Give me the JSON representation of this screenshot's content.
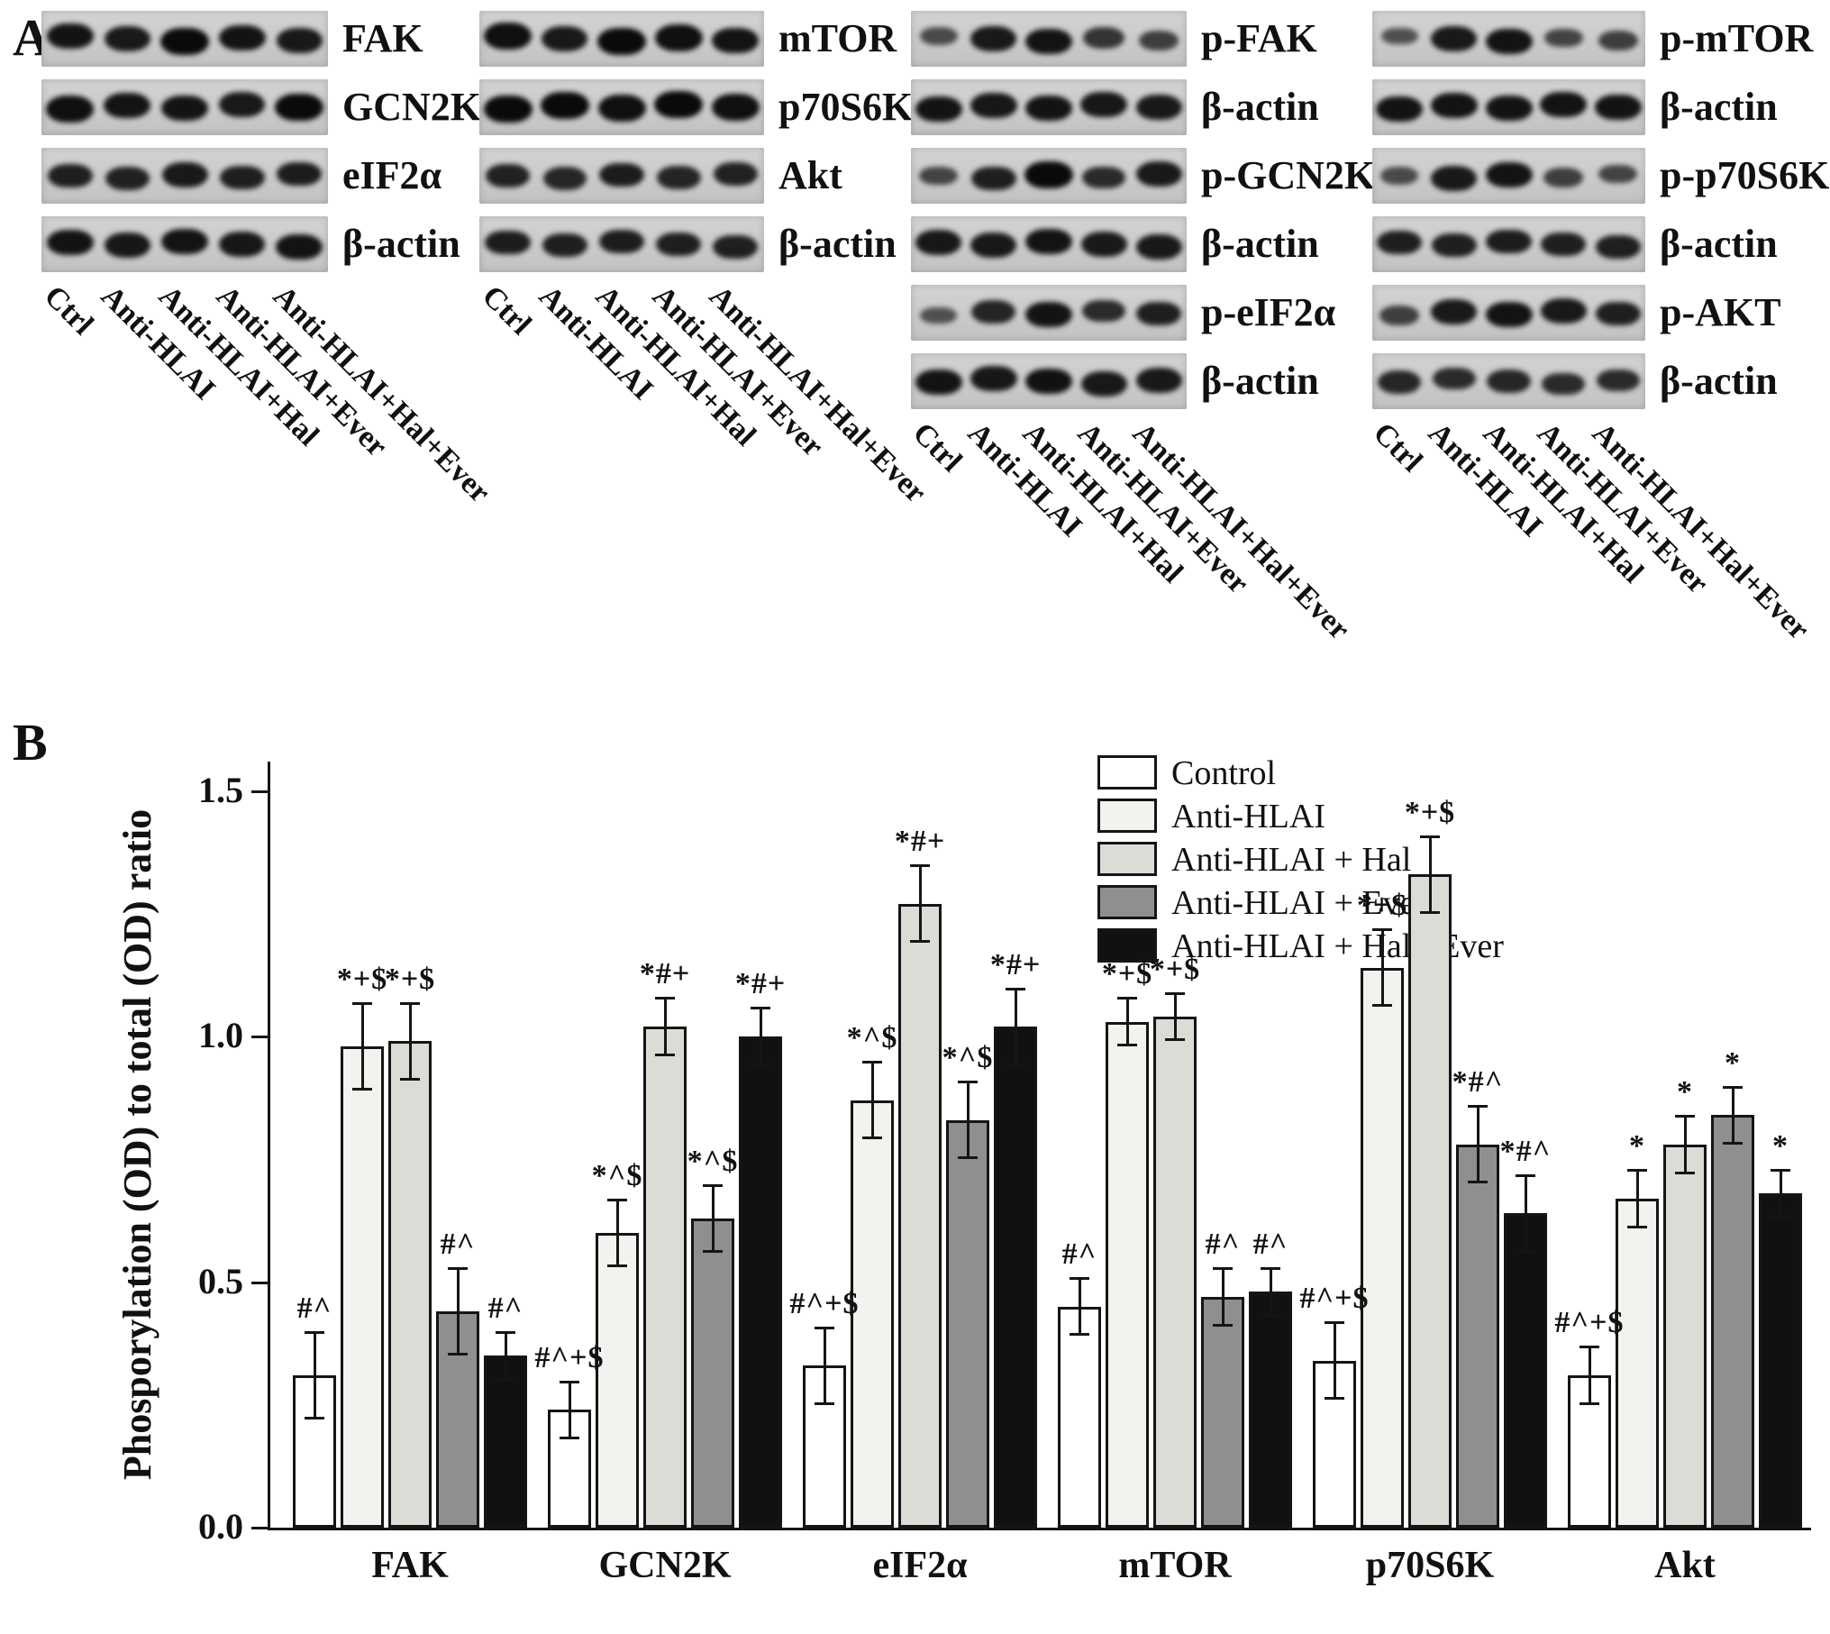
{
  "figure": {
    "panel_a_label": "A",
    "panel_b_label": "B"
  },
  "panel_a": {
    "lane_labels": [
      "Ctrl",
      "Anti-HLAI",
      "Anti-HLAI+Hal",
      "Anti-HLAI+Ever",
      "Anti-HLAI+Hal+Ever"
    ],
    "groups": [
      {
        "name": "total-adhesion-proteins",
        "rows": [
          {
            "label": "FAK",
            "bands": [
              0.9,
              0.85,
              1.0,
              0.9,
              0.85
            ]
          },
          {
            "label": "GCN2K",
            "bands": [
              0.95,
              0.9,
              0.9,
              0.85,
              1.0
            ]
          },
          {
            "label": "eIF2α",
            "bands": [
              0.8,
              0.78,
              0.85,
              0.8,
              0.82
            ]
          },
          {
            "label": "β-actin",
            "bands": [
              0.9,
              0.88,
              0.9,
              0.88,
              0.9
            ]
          }
        ]
      },
      {
        "name": "total-mtor-pathway-proteins",
        "rows": [
          {
            "label": "mTOR",
            "bands": [
              0.95,
              0.85,
              1.0,
              0.95,
              0.9
            ]
          },
          {
            "label": "p70S6K",
            "bands": [
              1.0,
              1.0,
              0.95,
              1.0,
              0.95
            ]
          },
          {
            "label": "Akt",
            "bands": [
              0.78,
              0.72,
              0.82,
              0.75,
              0.78
            ]
          },
          {
            "label": "β-actin",
            "bands": [
              0.82,
              0.8,
              0.82,
              0.8,
              0.8
            ]
          }
        ]
      },
      {
        "name": "phospho-adhesion-proteins",
        "rows": [
          {
            "label": "p-FAK",
            "bands": [
              0.4,
              0.85,
              0.9,
              0.6,
              0.5
            ]
          },
          {
            "label": "β-actin",
            "bands": [
              0.9,
              0.88,
              0.9,
              0.88,
              0.86
            ]
          },
          {
            "label": "p-GCN2K",
            "bands": [
              0.45,
              0.8,
              1.0,
              0.7,
              0.85
            ]
          },
          {
            "label": "β-actin",
            "bands": [
              0.88,
              0.85,
              0.9,
              0.85,
              0.85
            ]
          },
          {
            "label": "p-eIF2α",
            "bands": [
              0.35,
              0.75,
              0.9,
              0.7,
              0.8
            ]
          },
          {
            "label": "β-actin",
            "bands": [
              0.9,
              0.88,
              0.92,
              0.85,
              0.85
            ]
          }
        ]
      },
      {
        "name": "phospho-mtor-pathway-proteins",
        "rows": [
          {
            "label": "p-mTOR",
            "bands": [
              0.35,
              0.85,
              0.9,
              0.45,
              0.5
            ]
          },
          {
            "label": "β-actin",
            "bands": [
              0.9,
              0.9,
              0.9,
              0.9,
              0.9
            ]
          },
          {
            "label": "p-p70S6K",
            "bands": [
              0.4,
              0.85,
              0.9,
              0.5,
              0.45
            ]
          },
          {
            "label": "β-actin",
            "bands": [
              0.8,
              0.8,
              0.82,
              0.8,
              0.8
            ]
          },
          {
            "label": "p-AKT",
            "bands": [
              0.5,
              0.85,
              0.9,
              0.85,
              0.8
            ]
          },
          {
            "label": "β-actin",
            "bands": [
              0.72,
              0.7,
              0.72,
              0.7,
              0.7
            ]
          }
        ]
      }
    ]
  },
  "chart_data": {
    "type": "bar",
    "title": "",
    "xlabel": "",
    "ylabel": "Phosporylation (OD) to total (OD) ratio",
    "ylim": [
      0,
      1.5
    ],
    "yticks": [
      {
        "v": 0.0,
        "label": "0.0"
      },
      {
        "v": 0.5,
        "label": "0.5"
      },
      {
        "v": 1.0,
        "label": "1.0"
      },
      {
        "v": 1.5,
        "label": "1.5"
      }
    ],
    "grid": false,
    "legend_position": "top-right",
    "categories": [
      "FAK",
      "GCN2K",
      "eIF2α",
      "mTOR",
      "p70S6K",
      "Akt"
    ],
    "series": [
      {
        "name": "Control",
        "color": "#ffffff",
        "values": [
          0.31,
          0.24,
          0.33,
          0.45,
          0.34,
          0.31
        ],
        "errors": [
          0.09,
          0.06,
          0.08,
          0.06,
          0.08,
          0.06
        ],
        "annotations": [
          "#^",
          "#^+$",
          "#^+$",
          "#^",
          "#^+$",
          "#^+$"
        ]
      },
      {
        "name": "Anti-HLAI",
        "color": "#f2f2ef",
        "values": [
          0.98,
          0.6,
          0.87,
          1.03,
          1.14,
          0.67
        ],
        "errors": [
          0.09,
          0.07,
          0.08,
          0.05,
          0.08,
          0.06
        ],
        "annotations": [
          "*+$",
          "*^$",
          "*^$",
          "*+$",
          "*+$",
          "*"
        ]
      },
      {
        "name": "Anti-HLAI + Hal",
        "color": "#dcdcd6",
        "values": [
          0.99,
          1.02,
          1.27,
          1.04,
          1.33,
          0.78
        ],
        "errors": [
          0.08,
          0.06,
          0.08,
          0.05,
          0.08,
          0.06
        ],
        "annotations": [
          "*+$",
          "*#+",
          "*#+",
          "*+$",
          "*+$",
          "*"
        ]
      },
      {
        "name": "Anti-HLAI + Ever",
        "color": "#8f8f8f",
        "values": [
          0.44,
          0.63,
          0.83,
          0.47,
          0.78,
          0.84
        ],
        "errors": [
          0.09,
          0.07,
          0.08,
          0.06,
          0.08,
          0.06
        ],
        "annotations": [
          "#^",
          "*^$",
          "*^$",
          "#^",
          "*#^",
          "*"
        ]
      },
      {
        "name": "Anti-HLAI + Hal+ Ever",
        "color": "#111111",
        "values": [
          0.35,
          1.0,
          1.02,
          0.48,
          0.64,
          0.68
        ],
        "errors": [
          0.05,
          0.06,
          0.08,
          0.05,
          0.08,
          0.05
        ],
        "annotations": [
          "#^",
          "*#+",
          "*#+",
          "#^",
          "*#^",
          "*"
        ]
      }
    ]
  }
}
